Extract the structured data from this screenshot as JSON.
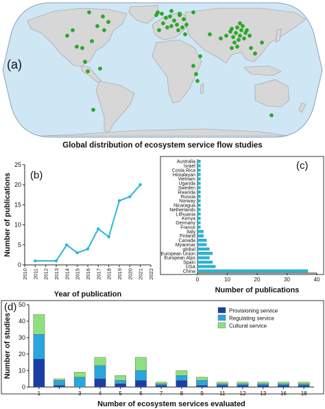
{
  "map": {
    "panel_label": "(a)",
    "caption": "Global distribution of ecosystem service flow studies",
    "ocean_color": "#cfe6f5",
    "land_color": "#d7d7d7",
    "point_color": "#22b022"
  },
  "chart_data": [
    {
      "id": "b",
      "type": "line",
      "panel_label": "(b)",
      "xlabel": "Year of publication",
      "ylabel": "Number of publications",
      "x": [
        2011,
        2013,
        2014,
        2015,
        2016,
        2017,
        2018,
        2019,
        2020,
        2021
      ],
      "series": [
        {
          "values": [
            1,
            1,
            5,
            3,
            4,
            9,
            7,
            16,
            17,
            20
          ]
        }
      ],
      "xlim": [
        2010,
        2022
      ],
      "ylim": [
        0,
        25
      ],
      "xticks": [
        2010,
        2011,
        2012,
        2013,
        2014,
        2015,
        2016,
        2017,
        2018,
        2019,
        2020,
        2021,
        2022
      ],
      "yticks": [
        0,
        5,
        10,
        15,
        20,
        25
      ],
      "color": "#29b6d6",
      "grid": false
    },
    {
      "id": "c",
      "type": "bar",
      "orientation": "horizontal",
      "panel_label": "(c)",
      "xlabel": "Number of publications",
      "categories": [
        "China",
        "USA",
        "Spain",
        "European Alps",
        "European Union",
        "global",
        "Myanmar",
        "Canada",
        "Finland",
        "Italy",
        "France",
        "Germany",
        "Kenya",
        "Lithuania",
        "Netherlands",
        "Nicaragua",
        "Norway",
        "Russia",
        "Rwanda",
        "Sweden",
        "Uganda",
        "Vietnam",
        "Himalayan",
        "Costa Rica",
        "Israel",
        "Australia"
      ],
      "values": [
        37,
        6,
        5,
        4,
        5,
        4,
        3,
        3,
        2,
        2,
        1,
        1,
        1,
        1,
        1,
        1,
        1,
        1,
        1,
        1,
        1,
        1,
        1,
        1,
        1,
        1
      ],
      "xlim": [
        0,
        40
      ],
      "xticks": [
        0,
        10,
        20,
        30,
        40
      ],
      "xtick_labels": [
        "0",
        "10",
        "20",
        "30",
        "40"
      ],
      "color": "#29b6d6",
      "grid": false
    },
    {
      "id": "d",
      "type": "bar",
      "stacked": true,
      "panel_label": "(d)",
      "xlabel": "Number of ecosystem services evaluated",
      "ylabel": "Number of studies",
      "categories": [
        "1",
        "2",
        "3",
        "4",
        "5",
        "6",
        "7",
        "8",
        "9",
        "11",
        "12",
        "13",
        "16",
        "18"
      ],
      "series": [
        {
          "name": "Provisioning service",
          "color": "#1b3ea6",
          "values": [
            17,
            1,
            0,
            5,
            2,
            4,
            1,
            4,
            1,
            1,
            1,
            1,
            1,
            1
          ]
        },
        {
          "name": "Regulating service",
          "color": "#29a6de",
          "values": [
            15,
            3,
            6,
            8,
            2,
            6,
            1,
            3,
            3,
            1,
            1,
            1,
            1,
            1
          ]
        },
        {
          "name": "Cultural service",
          "color": "#8ee07f",
          "values": [
            12,
            1,
            3,
            5,
            3,
            8,
            1,
            3,
            2,
            1,
            1,
            1,
            1,
            1
          ]
        }
      ],
      "ylim": [
        0,
        50
      ],
      "yticks": [
        0,
        10,
        20,
        30,
        40,
        50
      ],
      "xticks_shown": [
        "1",
        "3",
        "4",
        "5",
        "6",
        "7",
        "8",
        "9",
        "11",
        "12",
        "13",
        "16",
        "18"
      ],
      "legend_position": "top-right",
      "grid": false
    }
  ]
}
